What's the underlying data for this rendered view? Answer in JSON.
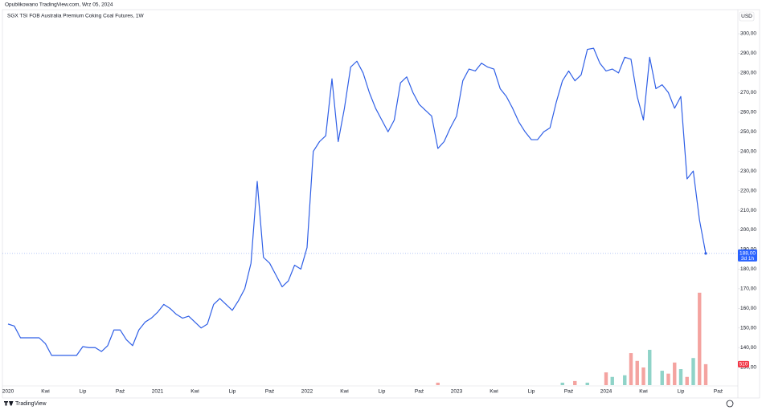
{
  "header": {
    "published": "Opublikowano TradingView.com, Wrz 05, 2024",
    "legend": "SGX TSI FOB Australia Premium Coking Coal Futures, 1W",
    "currency": "USD"
  },
  "footer": {
    "brand": "TradingView"
  },
  "chart_data": {
    "type": "line",
    "categories": [
      "2020",
      null,
      null,
      null,
      null,
      null,
      "Kwi",
      null,
      null,
      null,
      null,
      null,
      "Lip",
      null,
      null,
      null,
      null,
      null,
      "Paź",
      null,
      null,
      null,
      null,
      null,
      "2021",
      null,
      null,
      null,
      null,
      null,
      "Kwi",
      null,
      null,
      null,
      null,
      null,
      "Lip",
      null,
      null,
      null,
      null,
      null,
      "Paź",
      null,
      null,
      null,
      null,
      null,
      "2022",
      null,
      null,
      null,
      null,
      null,
      "Kwi",
      null,
      null,
      null,
      null,
      null,
      "Lip",
      null,
      null,
      null,
      null,
      null,
      "Paź",
      null,
      null,
      null,
      null,
      null,
      "2023",
      null,
      null,
      null,
      null,
      null,
      "Kwi",
      null,
      null,
      null,
      null,
      null,
      "Lip",
      null,
      null,
      null,
      null,
      null,
      "Paź",
      null,
      null,
      null,
      null,
      null,
      "2024",
      null,
      null,
      null,
      null,
      null,
      "Kwi",
      null,
      null,
      null,
      null,
      null,
      "Lip",
      null,
      null,
      null,
      null,
      null,
      "Paź"
    ],
    "series": [
      {
        "name": "SGX TSI FOB Australia Premium Coking Coal Futures",
        "color": "#2f5fe6",
        "values": [
          152,
          151,
          145,
          145,
          145,
          145,
          142,
          136,
          136,
          136,
          136,
          136,
          140.5,
          140,
          140,
          138,
          141,
          149,
          149,
          144,
          141,
          149,
          153,
          155,
          158,
          162,
          160,
          157,
          155,
          156,
          153,
          150,
          152,
          162,
          165,
          162,
          159,
          164,
          170,
          183,
          224.7,
          186,
          183,
          177,
          171,
          174,
          182,
          180,
          191,
          240,
          245,
          248,
          277,
          245,
          262,
          283,
          286,
          280,
          270,
          262,
          256,
          250,
          256,
          275,
          278,
          270,
          264,
          261,
          258,
          241.5,
          245,
          252,
          258,
          276,
          282,
          281,
          285,
          283,
          282,
          272,
          268,
          262,
          255,
          250,
          246,
          246,
          250,
          252,
          265,
          276,
          281,
          276,
          279,
          292,
          292.6,
          285,
          281,
          282,
          280,
          288,
          287,
          268,
          256,
          288,
          272,
          274,
          270,
          262,
          268,
          226,
          230,
          205,
          188,
          null,
          null
        ],
        "value_labels": [
          null,
          null,
          null,
          null,
          null,
          null,
          null,
          null,
          null,
          null,
          null,
          null,
          null,
          null,
          null,
          null,
          null,
          null,
          null,
          null,
          null,
          null,
          null,
          null,
          null,
          null,
          null,
          null,
          null,
          null,
          null,
          null,
          null,
          null,
          null,
          null,
          null,
          null,
          null,
          null,
          null,
          null,
          null,
          null,
          null,
          null,
          null,
          null,
          null,
          null,
          null,
          null,
          null,
          null,
          null,
          null,
          null,
          null,
          null,
          null,
          null,
          null,
          null,
          null,
          null,
          null,
          null,
          null,
          null,
          null,
          null,
          null,
          null,
          null,
          null,
          null,
          null,
          null,
          null,
          null,
          null,
          null,
          null,
          null,
          null,
          null,
          null,
          null,
          null,
          null,
          null,
          null,
          null,
          null,
          null,
          null,
          null,
          null,
          null,
          null,
          null,
          null,
          null,
          null,
          null,
          null,
          null,
          null,
          null,
          null,
          null,
          null,
          "188,00",
          null,
          null
        ]
      },
      {
        "name": "Volume",
        "axis": "volume",
        "up_color": "#8fd3c8",
        "down_color": "#f4a3a0",
        "values": [
          null,
          null,
          null,
          null,
          null,
          null,
          null,
          null,
          null,
          null,
          null,
          null,
          null,
          null,
          null,
          null,
          null,
          null,
          null,
          null,
          null,
          null,
          null,
          null,
          null,
          null,
          null,
          null,
          null,
          null,
          null,
          null,
          null,
          null,
          null,
          null,
          null,
          null,
          null,
          null,
          null,
          null,
          null,
          null,
          null,
          null,
          null,
          null,
          null,
          null,
          null,
          null,
          null,
          null,
          null,
          null,
          null,
          null,
          null,
          null,
          null,
          null,
          null,
          null,
          null,
          null,
          null,
          null,
          null,
          60,
          null,
          null,
          null,
          null,
          null,
          null,
          null,
          null,
          null,
          null,
          null,
          null,
          null,
          null,
          null,
          null,
          null,
          null,
          null,
          60,
          null,
          100,
          null,
          60,
          null,
          null,
          310,
          200,
          null,
          240,
          780,
          590,
          430,
          860,
          null,
          350,
          280,
          550,
          390,
          200,
          660,
          2250,
          510,
          null,
          null
        ]
      }
    ],
    "countdown": "3d 1h",
    "ylim": [
      125,
      305
    ],
    "yticks": [
      {
        "value": 130,
        "label": "130,00"
      },
      {
        "value": 140,
        "label": "140,00"
      },
      {
        "value": 150,
        "label": "150,00"
      },
      {
        "value": 160,
        "label": "160,00"
      },
      {
        "value": 170,
        "label": "170,00"
      },
      {
        "value": 180,
        "label": "180,00"
      },
      {
        "value": 190,
        "label": "190,00"
      },
      {
        "value": 200,
        "label": "200,00"
      },
      {
        "value": 210,
        "label": "210,00"
      },
      {
        "value": 220,
        "label": "220,00"
      },
      {
        "value": 230,
        "label": "230,00"
      },
      {
        "value": 240,
        "label": "240,00"
      },
      {
        "value": 250,
        "label": "250,00"
      },
      {
        "value": 260,
        "label": "260,00"
      },
      {
        "value": 270,
        "label": "270,00"
      },
      {
        "value": 280,
        "label": "280,00"
      },
      {
        "value": 290,
        "label": "290,00"
      },
      {
        "value": 300,
        "label": "300,00"
      }
    ],
    "volume_lim": [
      0,
      2500
    ],
    "grid": false
  }
}
